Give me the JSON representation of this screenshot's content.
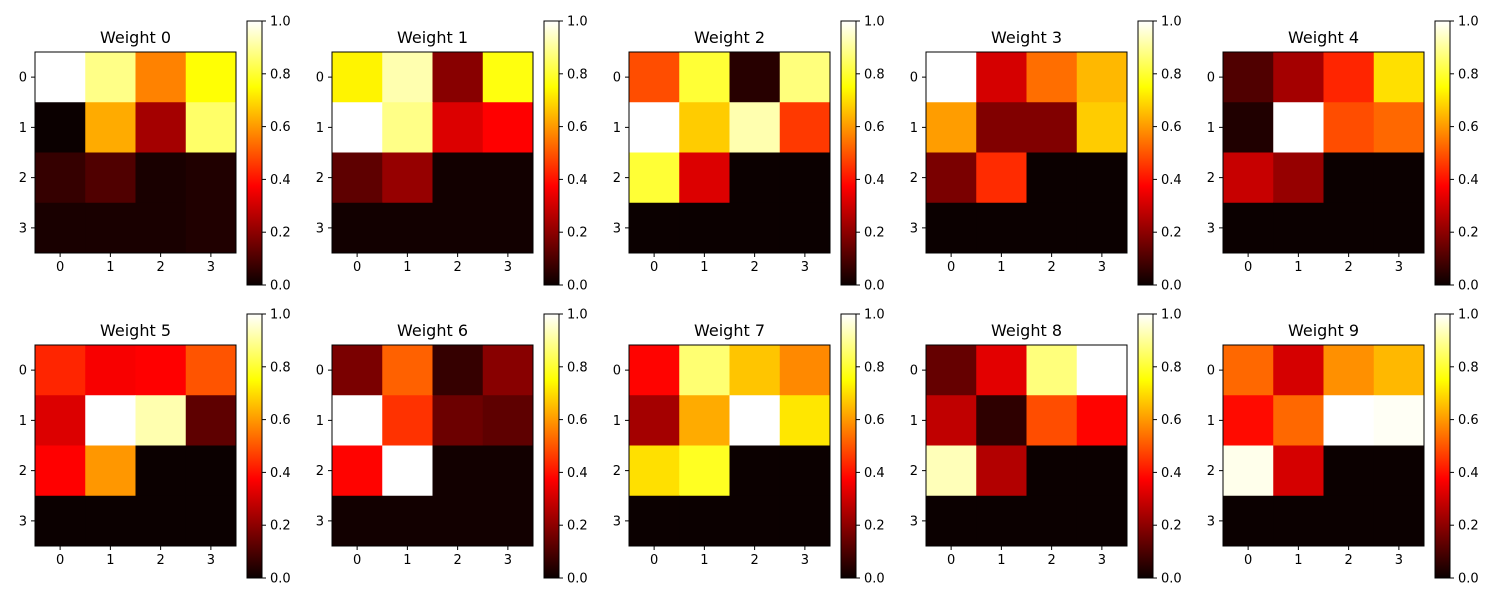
{
  "chart_data": [
    {
      "type": "heatmap",
      "title": "Weight 0",
      "x": [
        0,
        1,
        2,
        3
      ],
      "y": [
        0,
        1,
        2,
        3
      ],
      "values": [
        [
          1.0,
          0.88,
          0.56,
          0.75
        ],
        [
          0.0,
          0.62,
          0.22,
          0.85
        ],
        [
          0.06,
          0.1,
          0.02,
          0.03
        ],
        [
          0.02,
          0.02,
          0.02,
          0.03
        ]
      ],
      "colormap": "hot",
      "colorbar": {
        "range": [
          0.0,
          1.0
        ],
        "ticks": [
          "0.0",
          "0.2",
          "0.4",
          "0.6",
          "0.8",
          "1.0"
        ]
      }
    },
    {
      "type": "heatmap",
      "title": "Weight 1",
      "x": [
        0,
        1,
        2,
        3
      ],
      "y": [
        0,
        1,
        2,
        3
      ],
      "values": [
        [
          0.73,
          0.92,
          0.18,
          0.76
        ],
        [
          1.0,
          0.88,
          0.3,
          0.36
        ],
        [
          0.12,
          0.2,
          0.01,
          0.01
        ],
        [
          0.01,
          0.01,
          0.01,
          0.01
        ]
      ],
      "colormap": "hot",
      "colorbar": {
        "range": [
          0.0,
          1.0
        ],
        "ticks": [
          "0.0",
          "0.2",
          "0.4",
          "0.6",
          "0.8",
          "1.0"
        ]
      }
    },
    {
      "type": "heatmap",
      "title": "Weight 2",
      "x": [
        0,
        1,
        2,
        3
      ],
      "y": [
        0,
        1,
        2,
        3
      ],
      "values": [
        [
          0.48,
          0.8,
          0.04,
          0.87
        ],
        [
          1.0,
          0.67,
          0.92,
          0.45
        ],
        [
          0.8,
          0.3,
          0.0,
          0.0
        ],
        [
          0.0,
          0.0,
          0.0,
          0.0
        ]
      ],
      "colormap": "hot",
      "colorbar": {
        "range": [
          0.0,
          1.0
        ],
        "ticks": [
          "0.0",
          "0.2",
          "0.4",
          "0.6",
          "0.8",
          "1.0"
        ]
      }
    },
    {
      "type": "heatmap",
      "title": "Weight 3",
      "x": [
        0,
        1,
        2,
        3
      ],
      "y": [
        0,
        1,
        2,
        3
      ],
      "values": [
        [
          1.0,
          0.29,
          0.53,
          0.64
        ],
        [
          0.6,
          0.17,
          0.17,
          0.67
        ],
        [
          0.16,
          0.43,
          0.0,
          0.0
        ],
        [
          0.0,
          0.0,
          0.0,
          0.0
        ]
      ],
      "colormap": "hot",
      "colorbar": {
        "range": [
          0.0,
          1.0
        ],
        "ticks": [
          "0.0",
          "0.2",
          "0.4",
          "0.6",
          "0.8",
          "1.0"
        ]
      }
    },
    {
      "type": "heatmap",
      "title": "Weight 4",
      "x": [
        0,
        1,
        2,
        3
      ],
      "y": [
        0,
        1,
        2,
        3
      ],
      "values": [
        [
          0.1,
          0.22,
          0.42,
          0.7
        ],
        [
          0.03,
          1.0,
          0.48,
          0.52
        ],
        [
          0.27,
          0.2,
          0.0,
          0.0
        ],
        [
          0.0,
          0.0,
          0.0,
          0.0
        ]
      ],
      "colormap": "hot",
      "colorbar": {
        "range": [
          0.0,
          1.0
        ],
        "ticks": [
          "0.0",
          "0.2",
          "0.4",
          "0.6",
          "0.8",
          "1.0"
        ]
      }
    },
    {
      "type": "heatmap",
      "title": "Weight 5",
      "x": [
        0,
        1,
        2,
        3
      ],
      "y": [
        0,
        1,
        2,
        3
      ],
      "values": [
        [
          0.42,
          0.34,
          0.35,
          0.49
        ],
        [
          0.3,
          1.0,
          0.92,
          0.12
        ],
        [
          0.36,
          0.59,
          0.0,
          0.0
        ],
        [
          0.0,
          0.0,
          0.0,
          0.0
        ]
      ],
      "colormap": "hot",
      "colorbar": {
        "range": [
          0.0,
          1.0
        ],
        "ticks": [
          "0.0",
          "0.2",
          "0.4",
          "0.6",
          "0.8",
          "1.0"
        ]
      }
    },
    {
      "type": "heatmap",
      "title": "Weight 6",
      "x": [
        0,
        1,
        2,
        3
      ],
      "y": [
        0,
        1,
        2,
        3
      ],
      "values": [
        [
          0.16,
          0.51,
          0.06,
          0.18
        ],
        [
          1.0,
          0.44,
          0.14,
          0.12
        ],
        [
          0.37,
          1.0,
          0.01,
          0.01
        ],
        [
          0.01,
          0.01,
          0.01,
          0.01
        ]
      ],
      "colormap": "hot",
      "colorbar": {
        "range": [
          0.0,
          1.0
        ],
        "ticks": [
          "0.0",
          "0.2",
          "0.4",
          "0.6",
          "0.8",
          "1.0"
        ]
      }
    },
    {
      "type": "heatmap",
      "title": "Weight 7",
      "x": [
        0,
        1,
        2,
        3
      ],
      "y": [
        0,
        1,
        2,
        3
      ],
      "values": [
        [
          0.37,
          0.86,
          0.66,
          0.57
        ],
        [
          0.22,
          0.62,
          1.0,
          0.71
        ],
        [
          0.7,
          0.78,
          0.0,
          0.0
        ],
        [
          0.0,
          0.0,
          0.0,
          0.0
        ]
      ],
      "colormap": "hot",
      "colorbar": {
        "range": [
          0.0,
          1.0
        ],
        "ticks": [
          "0.0",
          "0.2",
          "0.4",
          "0.6",
          "0.8",
          "1.0"
        ]
      }
    },
    {
      "type": "heatmap",
      "title": "Weight 8",
      "x": [
        0,
        1,
        2,
        3
      ],
      "y": [
        0,
        1,
        2,
        3
      ],
      "values": [
        [
          0.13,
          0.31,
          0.87,
          1.0
        ],
        [
          0.26,
          0.05,
          0.48,
          0.37
        ],
        [
          0.93,
          0.24,
          0.0,
          0.0
        ],
        [
          0.0,
          0.0,
          0.0,
          0.0
        ]
      ],
      "colormap": "hot",
      "colorbar": {
        "range": [
          0.0,
          1.0
        ],
        "ticks": [
          "0.0",
          "0.2",
          "0.4",
          "0.6",
          "0.8",
          "1.0"
        ]
      }
    },
    {
      "type": "heatmap",
      "title": "Weight 9",
      "x": [
        0,
        1,
        2,
        3
      ],
      "y": [
        0,
        1,
        2,
        3
      ],
      "values": [
        [
          0.52,
          0.29,
          0.58,
          0.64
        ],
        [
          0.38,
          0.52,
          1.0,
          0.99
        ],
        [
          0.98,
          0.29,
          0.0,
          0.0
        ],
        [
          0.0,
          0.0,
          0.0,
          0.0
        ]
      ],
      "colormap": "hot",
      "colorbar": {
        "range": [
          0.0,
          1.0
        ],
        "ticks": [
          "0.0",
          "0.2",
          "0.4",
          "0.6",
          "0.8",
          "1.0"
        ]
      }
    }
  ]
}
